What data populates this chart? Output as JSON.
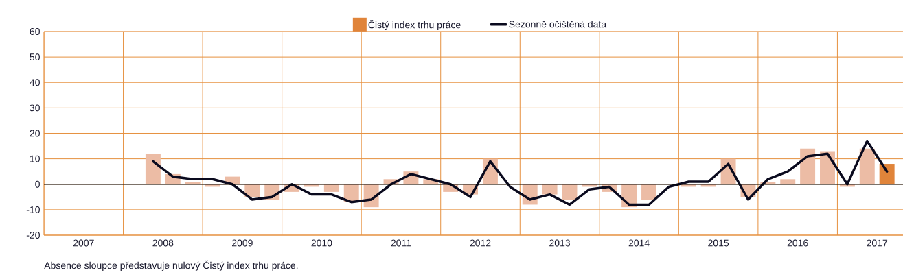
{
  "chart_data": {
    "type": "bar",
    "x": [
      2008.375,
      2008.625,
      2008.875,
      2009.125,
      2009.375,
      2009.625,
      2009.875,
      2010.125,
      2010.375,
      2010.625,
      2010.875,
      2011.125,
      2011.375,
      2011.625,
      2011.875,
      2012.125,
      2012.375,
      2012.625,
      2012.875,
      2013.125,
      2013.375,
      2013.625,
      2013.875,
      2014.125,
      2014.375,
      2014.625,
      2014.875,
      2015.125,
      2015.375,
      2015.625,
      2015.875,
      2016.125,
      2016.375,
      2016.625,
      2016.875,
      2017.125,
      2017.375,
      2017.625
    ],
    "series": [
      {
        "name": "Čistý index trhu práce",
        "color": "#e0843a",
        "colors": [
          "#ecbca5",
          "#ecbca5",
          "#ecbca5",
          "#ecbca5",
          "#ecbca5",
          "#ecbca5",
          "#ecbca5",
          "#ecbca5",
          "#ecbca5",
          "#ecbca5",
          "#ecbca5",
          "#ecbca5",
          "#ecbca5",
          "#ecbca5",
          "#ecbca5",
          "#ecbca5",
          "#ecbca5",
          "#ecbca5",
          "#ecbca5",
          "#ecbca5",
          "#ecbca5",
          "#ecbca5",
          "#ecbca5",
          "#ecbca5",
          "#ecbca5",
          "#ecbca5",
          "#ecbca5",
          "#ecbca5",
          "#ecbca5",
          "#ecbca5",
          "#ecbca5",
          "#ecbca5",
          "#ecbca5",
          "#ecbca5",
          "#ecbca5",
          "#ecbca5",
          "#ecbca5",
          "#e0843a"
        ],
        "values": [
          12,
          4,
          1,
          -1,
          3,
          -5,
          -6,
          -3,
          -1,
          -3,
          -7,
          -9,
          2,
          5,
          2,
          -3,
          -4,
          10,
          null,
          -8,
          -4,
          -6,
          -1,
          -3,
          -9,
          -6,
          null,
          -1,
          -1,
          10,
          -5,
          1,
          2,
          14,
          13,
          -1,
          14,
          8
        ]
      },
      {
        "name": "Sezonně očištěná data",
        "type": "line",
        "color": "#0a0a1e",
        "values": [
          9,
          3,
          2,
          2,
          0,
          -6,
          -5,
          0,
          -4,
          -4,
          -7,
          -6,
          0,
          4,
          2,
          0,
          -5,
          9,
          -1,
          -6,
          -4,
          -8,
          -2,
          -1,
          -8,
          -8,
          -1,
          1,
          1,
          8,
          -6,
          2,
          5,
          11,
          12,
          0,
          17,
          5
        ]
      }
    ],
    "xlim": [
      2007,
      2018
    ],
    "xticks": [
      {
        "value": 2007,
        "label": null
      },
      {
        "value": 2007.5,
        "label": "2007"
      },
      {
        "value": 2008,
        "label": null
      },
      {
        "value": 2008.5,
        "label": "2008"
      },
      {
        "value": 2009,
        "label": null
      },
      {
        "value": 2009.5,
        "label": "2009"
      },
      {
        "value": 2010,
        "label": null
      },
      {
        "value": 2010.5,
        "label": "2010"
      },
      {
        "value": 2011,
        "label": null
      },
      {
        "value": 2011.5,
        "label": "2011"
      },
      {
        "value": 2012,
        "label": null
      },
      {
        "value": 2012.5,
        "label": "2012"
      },
      {
        "value": 2013,
        "label": null
      },
      {
        "value": 2013.5,
        "label": "2013"
      },
      {
        "value": 2014,
        "label": null
      },
      {
        "value": 2014.5,
        "label": "2014"
      },
      {
        "value": 2015,
        "label": null
      },
      {
        "value": 2015.5,
        "label": "2015"
      },
      {
        "value": 2016,
        "label": null
      },
      {
        "value": 2016.5,
        "label": "2016"
      },
      {
        "value": 2017,
        "label": null
      },
      {
        "value": 2017.5,
        "label": "2017"
      },
      {
        "value": 2018,
        "label": null
      }
    ],
    "ylim": [
      -20,
      60
    ],
    "yticks": [
      -20,
      -10,
      0,
      10,
      20,
      30,
      40,
      50,
      60
    ],
    "grid": true,
    "legend": "top",
    "annotations": [
      "Absence sloupce představuje nulový Čistý index trhu práce."
    ]
  }
}
